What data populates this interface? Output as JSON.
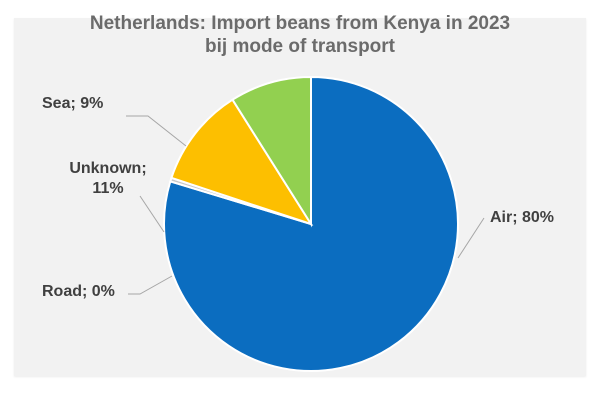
{
  "chart_data": {
    "type": "pie",
    "title_lines": [
      "Netherlands: Import beans from Kenya in 2023",
      "bij mode of transport"
    ],
    "slices": [
      {
        "label": "Air",
        "value": 80,
        "percent_text": "80%",
        "color": "#0b6dc0"
      },
      {
        "label": "Road",
        "value": 0.4,
        "percent_text": "0%",
        "color": "#c8c8c8"
      },
      {
        "label": "Unknown",
        "value": 11,
        "percent_text": "11%",
        "color": "#fdbf00"
      },
      {
        "label": "Sea",
        "value": 9,
        "percent_text": "9%",
        "color": "#92d050"
      }
    ],
    "legend": "none",
    "data_labels": "outside-with-leader-lines"
  }
}
